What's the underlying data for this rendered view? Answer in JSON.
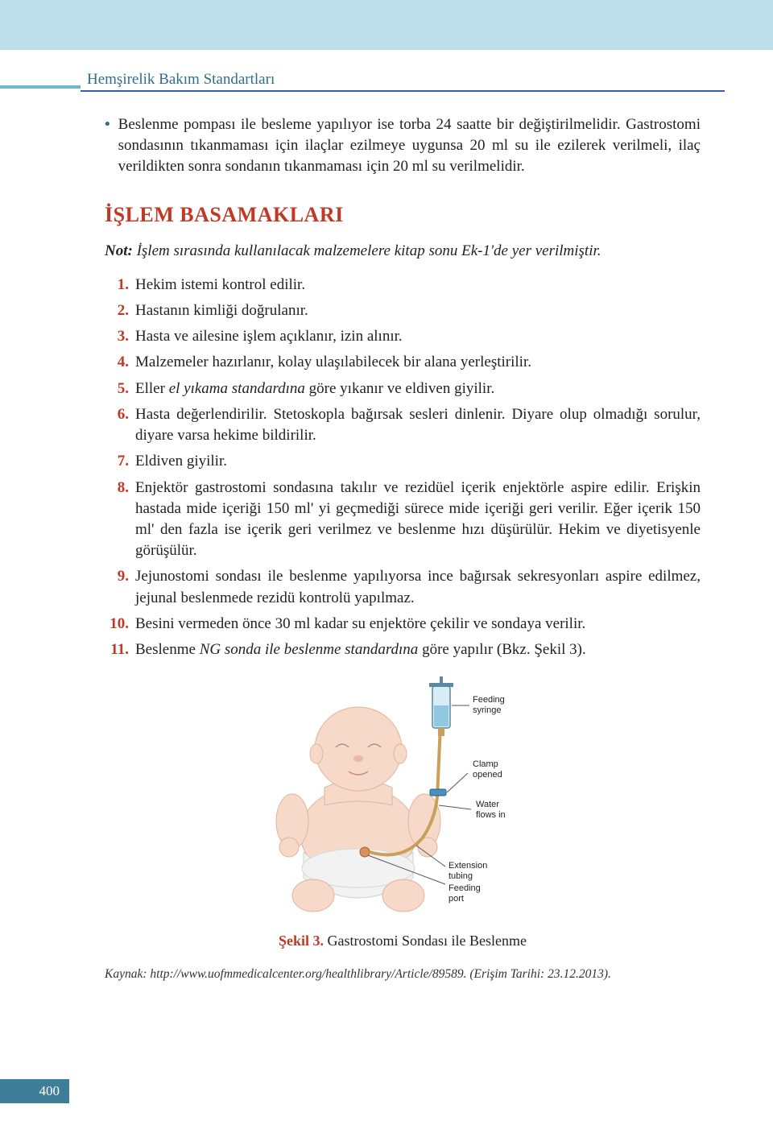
{
  "header": {
    "title": "Hemşirelik Bakım Standartları",
    "accent_color": "#6fb7cc",
    "underline_color": "#3a5db0",
    "top_band_color": "#bde0ea"
  },
  "bullet_paragraph": "Beslenme pompası ile besleme yapılıyor ise torba 24 saatte bir değiştirilmelidir. Gastrostomi sondasının tıkanmaması için ilaçlar ezilmeye uygunsa 20 ml su ile ezilerek verilmeli, ilaç verildikten sonra sondanın tıkanmaması için 20 ml su verilmelidir.",
  "section_heading": "İŞLEM BASAMAKLARI",
  "note": {
    "label": "Not:",
    "text": "İşlem sırasında kullanılacak malzemelere kitap sonu Ek-1'de yer verilmiştir."
  },
  "steps": [
    {
      "n": "1.",
      "parts": [
        {
          "t": "Hekim istemi kontrol edilir.",
          "i": false
        }
      ]
    },
    {
      "n": "2.",
      "parts": [
        {
          "t": "Hastanın kimliği doğrulanır.",
          "i": false
        }
      ]
    },
    {
      "n": "3.",
      "parts": [
        {
          "t": "Hasta ve ailesine işlem açıklanır, izin alınır.",
          "i": false
        }
      ]
    },
    {
      "n": "4.",
      "parts": [
        {
          "t": "Malzemeler hazırlanır, kolay ulaşılabilecek bir alana yerleştirilir.",
          "i": false
        }
      ]
    },
    {
      "n": "5.",
      "parts": [
        {
          "t": "Eller ",
          "i": false
        },
        {
          "t": "el yıkama standardına",
          "i": true
        },
        {
          "t": " göre yıkanır ve eldiven giyilir.",
          "i": false
        }
      ]
    },
    {
      "n": "6.",
      "parts": [
        {
          "t": "Hasta değerlendirilir. Stetoskopla bağırsak sesleri dinlenir. Diyare olup olmadığı sorulur, diyare varsa hekime bildirilir.",
          "i": false
        }
      ]
    },
    {
      "n": "7.",
      "parts": [
        {
          "t": "Eldiven giyilir.",
          "i": false
        }
      ]
    },
    {
      "n": "8.",
      "parts": [
        {
          "t": "Enjektör gastrostomi sondasına takılır ve rezidüel içerik enjektörle aspire edilir. Erişkin hastada mide içeriği 150 ml' yi geçmediği sürece mide içeriği geri verilir. Eğer içerik 150 ml' den fazla ise içerik geri verilmez ve beslenme hızı düşürülür. Hekim ve diyetisyenle görüşülür.",
          "i": false
        }
      ]
    },
    {
      "n": "9.",
      "parts": [
        {
          "t": "Jejunostomi sondası ile beslenme yapılıyorsa ince bağırsak sekresyonları aspire edilmez, jejunal beslenmede rezidü kontrolü yapılmaz.",
          "i": false
        }
      ]
    },
    {
      "n": "10.",
      "parts": [
        {
          "t": "Besini vermeden önce 30 ml kadar su enjektöre çekilir ve sondaya verilir.",
          "i": false
        }
      ]
    },
    {
      "n": "11.",
      "parts": [
        {
          "t": "Beslenme ",
          "i": false
        },
        {
          "t": "NG sonda ile beslenme standardına",
          "i": true
        },
        {
          "t": " göre yapılır (Bkz. Şekil 3).",
          "i": false
        }
      ]
    }
  ],
  "figure": {
    "labels": {
      "feeding_syringe_1": "Feeding",
      "feeding_syringe_2": "syringe",
      "clamp_1": "Clamp",
      "clamp_2": "opened",
      "water_1": "Water",
      "water_2": "flows in",
      "ext_1": "Extension",
      "ext_2": "tubing",
      "port_1": "Feeding",
      "port_2": "port"
    },
    "colors": {
      "skin": "#f7d9ca",
      "skin_shadow": "#e8b9a4",
      "diaper": "#f2f2f2",
      "diaper_shadow": "#d8d8d8",
      "syringe_body": "#d8ecf5",
      "syringe_outline": "#5a8aa0",
      "water": "#8fc8e0",
      "tube": "#c9a05a",
      "clamp": "#4a90c2",
      "line": "#555555",
      "eye": "#7a6a5a"
    },
    "caption_label": "Şekil 3.",
    "caption_text": " Gastrostomi Sondası ile Beslenme"
  },
  "source": "Kaynak: http://www.uofmmedicalcenter.org/healthlibrary/Article/89589. (Erişim Tarihi: 23.12.2013).",
  "page_number": "400",
  "heading_color": "#c23826"
}
